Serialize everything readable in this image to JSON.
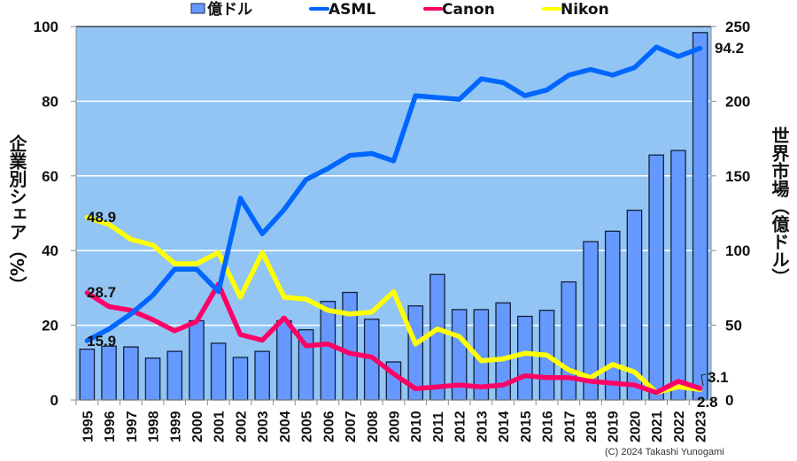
{
  "chart_data": {
    "type": "bar+line",
    "categories": [
      "1995",
      "1996",
      "1997",
      "1998",
      "1999",
      "2000",
      "2001",
      "2002",
      "2003",
      "2004",
      "2005",
      "2006",
      "2007",
      "2008",
      "2009",
      "2010",
      "2011",
      "2012",
      "2013",
      "2014",
      "2015",
      "2016",
      "2017",
      "2018",
      "2019",
      "2020",
      "2021",
      "2022",
      "2023"
    ],
    "bar_series": {
      "name": "億ドル",
      "axis": "right",
      "color": "#6699ff",
      "values": [
        34,
        36,
        35.5,
        28,
        32.5,
        53,
        38,
        28.5,
        32.5,
        53,
        47,
        66,
        72,
        54,
        25.5,
        63,
        84,
        60.5,
        60.5,
        65,
        56,
        60,
        79,
        106,
        113,
        127,
        164,
        167,
        246
      ]
    },
    "series": [
      {
        "name": "ASML",
        "axis": "left",
        "color": "#0066ff",
        "values": [
          15.9,
          19,
          23,
          28,
          35,
          35,
          29,
          54,
          44.5,
          51,
          59,
          62,
          65.5,
          66,
          64,
          81.5,
          81,
          80.5,
          86,
          85,
          81.5,
          83,
          87,
          88.5,
          87,
          89,
          94.5,
          92,
          94.2
        ]
      },
      {
        "name": "Canon",
        "axis": "left",
        "color": "#ff0066",
        "values": [
          28.7,
          25,
          24,
          21.5,
          18.5,
          21,
          31,
          17.5,
          16,
          22,
          14.5,
          15,
          12.5,
          11.5,
          7,
          3,
          3.5,
          4,
          3.5,
          4,
          6.5,
          6,
          6,
          5,
          4.5,
          4,
          2,
          5,
          3.1
        ]
      },
      {
        "name": "Nikon",
        "axis": "left",
        "color": "#ffff00",
        "values": [
          48.9,
          47,
          43,
          41.5,
          36.5,
          36.5,
          39.5,
          27.5,
          39.5,
          27.5,
          27,
          24,
          23,
          23.5,
          29,
          15,
          19,
          17,
          10.5,
          11,
          12.5,
          12,
          8,
          6,
          9.5,
          7.5,
          2,
          3.5,
          2.8
        ]
      }
    ],
    "ylabel": "企業別シェア（%）",
    "y2label": "世界市場（億ドル）",
    "ylim": [
      0,
      100
    ],
    "y2lim": [
      0,
      250
    ],
    "yticks": [
      "0",
      "20",
      "40",
      "60",
      "80",
      "100"
    ],
    "y2ticks": [
      "0",
      "50",
      "100",
      "150",
      "200",
      "250"
    ],
    "grid": true,
    "legend_position": "top",
    "annotations": [
      "48.9",
      "28.7",
      "15.9",
      "94.2",
      "3.1",
      "2.8"
    ],
    "plot_background": "#92c5f3"
  },
  "credit": "(C) 2024 Takashi Yunogami"
}
